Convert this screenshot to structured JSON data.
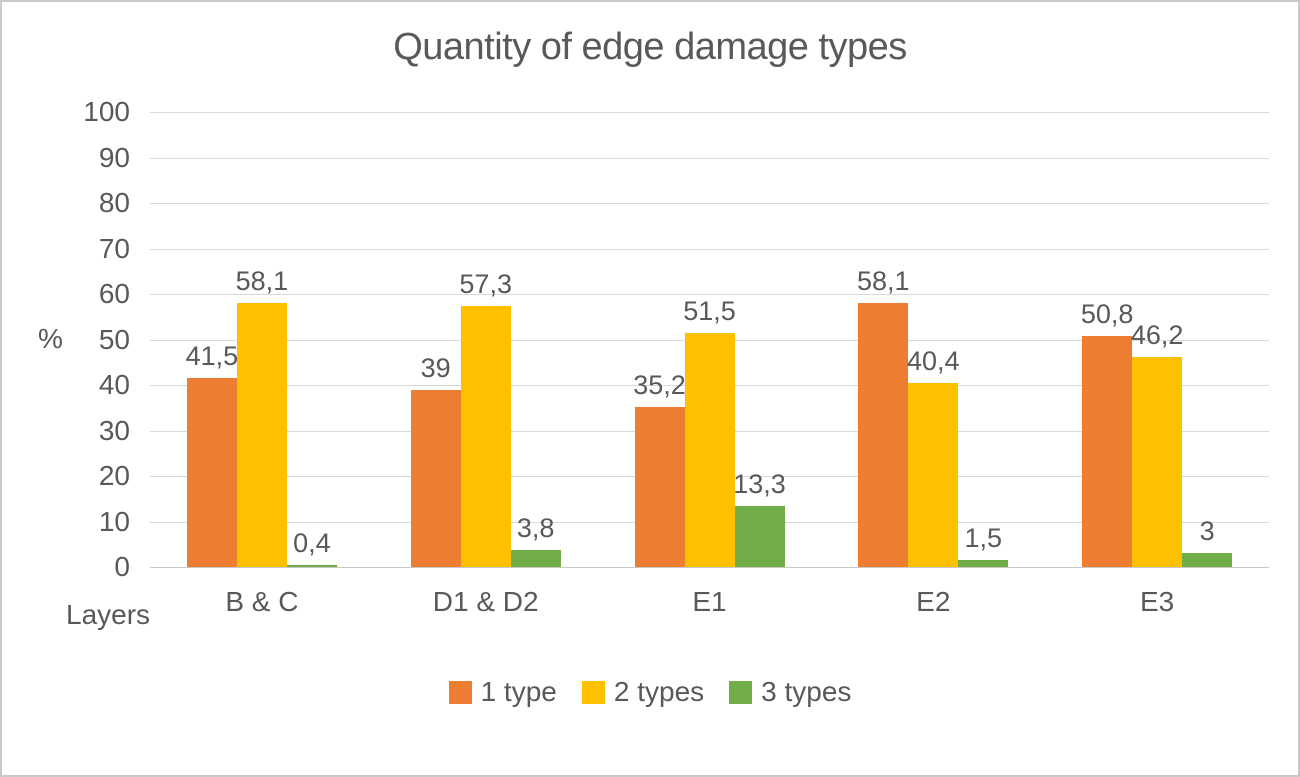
{
  "frame": {
    "background_color": "#FFFFFF",
    "border_color": "#C9C9C9"
  },
  "chart_data": {
    "type": "bar",
    "title": "Quantity of edge damage types",
    "xlabel": "Layers",
    "ylabel": "%",
    "ylim": [
      0,
      100
    ],
    "ytick_step": 10,
    "ytick_labels": [
      "100",
      "90",
      "80",
      "70",
      "60",
      "50",
      "40",
      "30",
      "20",
      "10",
      "0"
    ],
    "grid": true,
    "gridline_color": "#D9D9D9",
    "text_color": "#595959",
    "legend_position": "bottom",
    "categories": [
      "B & C",
      "D1 & D2",
      "E1",
      "E2",
      "E3"
    ],
    "series": [
      {
        "name": "1 type",
        "color": "#ED7D31",
        "values": [
          41.5,
          39,
          35.2,
          58.1,
          50.8
        ],
        "labels": [
          "41,5",
          "39",
          "35,2",
          "58,1",
          "50,8"
        ]
      },
      {
        "name": "2 types",
        "color": "#FFC000",
        "values": [
          58.1,
          57.3,
          51.5,
          40.4,
          46.2
        ],
        "labels": [
          "58,1",
          "57,3",
          "51,5",
          "40,4",
          "46,2"
        ]
      },
      {
        "name": "3 types",
        "color": "#70AD47",
        "values": [
          0.4,
          3.8,
          13.3,
          1.5,
          3
        ],
        "labels": [
          "0,4",
          "3,8",
          "13,3",
          "1,5",
          "3"
        ]
      }
    ]
  }
}
